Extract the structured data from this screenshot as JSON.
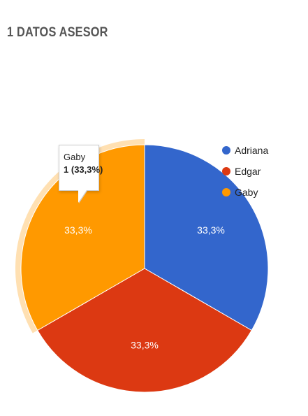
{
  "title": "1 DATOS ASESOR",
  "chart_data": {
    "type": "pie",
    "title": "1 DATOS ASESOR",
    "categories": [
      "Adriana",
      "Edgar",
      "Gaby"
    ],
    "values": [
      1,
      1,
      1
    ],
    "percent_labels": [
      "33,3%",
      "33,3%",
      "33,3%"
    ],
    "colors": [
      "#3366cc",
      "#dc3912",
      "#ff9900"
    ],
    "legend_position": "right",
    "highlighted": "Gaby"
  },
  "tooltip": {
    "category": "Gaby",
    "value": "1",
    "percent": "(33,3%)"
  }
}
